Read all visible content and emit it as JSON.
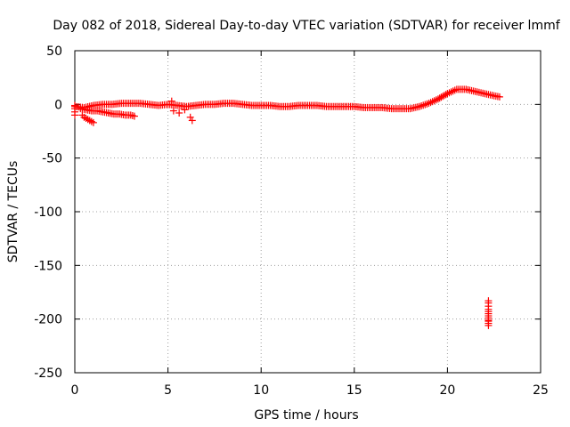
{
  "chart_data": {
    "type": "scatter",
    "title": "Day 082 of 2018, Sidereal Day-to-day VTEC variation (SDTVAR) for receiver lmmf",
    "xlabel": "GPS time / hours",
    "ylabel": "SDTVAR / TECUs",
    "xlim": [
      0,
      25
    ],
    "ylim": [
      -250,
      50
    ],
    "xticks": [
      0,
      5,
      10,
      15,
      20,
      25
    ],
    "yticks": [
      -250,
      -200,
      -150,
      -100,
      -50,
      0,
      50
    ],
    "xtick_labels": [
      "0",
      "5",
      "10",
      "15",
      "20",
      "25"
    ],
    "ytick_labels": [
      "-250",
      "-200",
      "-150",
      "-100",
      "-50",
      "0",
      "50"
    ],
    "grid": true,
    "marker": "plus",
    "color": "#ff0000",
    "series": [
      {
        "name": "main-track",
        "x": [
          0.0,
          0.5,
          1.0,
          1.5,
          2.0,
          2.5,
          3.0,
          3.5,
          4.0,
          4.5,
          5.0,
          5.5,
          6.0,
          6.5,
          7.0,
          7.5,
          8.0,
          8.5,
          9.0,
          9.5,
          10.0,
          10.5,
          11.0,
          11.5,
          12.0,
          12.5,
          13.0,
          13.5,
          14.0,
          14.5,
          15.0,
          15.5,
          16.0,
          16.5,
          17.0,
          17.5,
          18.0,
          18.5,
          19.0,
          19.5,
          20.0,
          20.5,
          21.0,
          21.5,
          22.0,
          22.5,
          22.8
        ],
        "y": [
          -2,
          -3,
          -1,
          0,
          0,
          1,
          1,
          1,
          0,
          -1,
          0,
          -1,
          -2,
          -1,
          0,
          0,
          1,
          1,
          0,
          -1,
          -1,
          -1,
          -2,
          -2,
          -1,
          -1,
          -1,
          -2,
          -2,
          -2,
          -2,
          -3,
          -3,
          -3,
          -4,
          -4,
          -4,
          -2,
          1,
          5,
          10,
          14,
          14,
          12,
          10,
          8,
          7
        ]
      },
      {
        "name": "lower-branch",
        "x": [
          0.3,
          0.6,
          0.9,
          1.2,
          1.5,
          1.8,
          2.1,
          2.4,
          2.7,
          3.0,
          3.2
        ],
        "y": [
          -4,
          -5,
          -6,
          -6,
          -7,
          -8,
          -9,
          -9,
          -10,
          -10,
          -11
        ]
      },
      {
        "name": "descending-tail",
        "x": [
          0.4,
          0.5,
          0.6,
          0.7,
          0.8,
          0.9,
          1.0
        ],
        "y": [
          -10,
          -12,
          -13,
          -14,
          -15,
          -16,
          -17
        ]
      },
      {
        "name": "start-cluster",
        "x": [
          0.0,
          0.0,
          0.0,
          0.0
        ],
        "y": [
          -1,
          -4,
          -7,
          -10
        ]
      },
      {
        "name": "spikes-5-to-6",
        "x": [
          5.2,
          5.3,
          5.6,
          5.9,
          6.2,
          6.3
        ],
        "y": [
          3,
          -6,
          -8,
          -5,
          -12,
          -15
        ]
      },
      {
        "name": "outliers-near-22h",
        "x": [
          22.2,
          22.2,
          22.2,
          22.2,
          22.2,
          22.2,
          22.2,
          22.2,
          22.2,
          22.2,
          22.2,
          22.2
        ],
        "y": [
          -183,
          -185,
          -188,
          -191,
          -193,
          -195,
          -197,
          -199,
          -201,
          -202,
          -204,
          -206
        ]
      }
    ]
  }
}
